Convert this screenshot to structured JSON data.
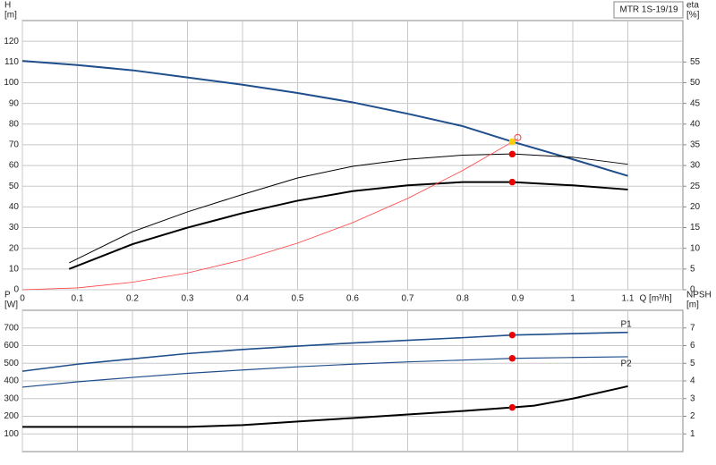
{
  "chart_data": [
    {
      "type": "line",
      "label": "MTR 1S-19/19",
      "y_label": "H",
      "y_unit": "[m]",
      "y2_label": "eta",
      "y2_unit": "[%]",
      "x_label": "Q [m³/h]",
      "xlim": [
        0,
        1.2
      ],
      "xticks": [
        0,
        0.1,
        0.2,
        0.3,
        0.4,
        0.5,
        0.6,
        0.7,
        0.8,
        0.9,
        1.0,
        1.1
      ],
      "xtick_labels": true,
      "ylim": [
        0,
        130
      ],
      "yticks": [
        0,
        10,
        20,
        30,
        40,
        50,
        60,
        70,
        80,
        90,
        100,
        110,
        120
      ],
      "y2lim": [
        0,
        65
      ],
      "y2ticks": [
        0,
        5,
        10,
        15,
        20,
        25,
        30,
        35,
        40,
        45,
        50,
        55
      ],
      "grid": true,
      "series": [
        {
          "color": "#1f4e8c",
          "width": 2,
          "x": [
            0,
            0.1,
            0.2,
            0.3,
            0.4,
            0.5,
            0.6,
            0.7,
            0.8,
            0.89,
            1.0,
            1.1
          ],
          "values": [
            110.5,
            108.5,
            106,
            102.5,
            99,
            95,
            90.5,
            85,
            79,
            71.5,
            63,
            55
          ]
        },
        {
          "color": "#000000",
          "width": 1,
          "axis": "y2",
          "x": [
            0.085,
            0.2,
            0.3,
            0.4,
            0.5,
            0.6,
            0.7,
            0.8,
            0.89,
            1.0,
            1.1
          ],
          "values": [
            6.5,
            14,
            18.8,
            23,
            27,
            29.8,
            31.5,
            32.5,
            32.8,
            32,
            30.3
          ]
        },
        {
          "color": "#000000",
          "width": 2,
          "axis": "y2",
          "x": [
            0.085,
            0.2,
            0.3,
            0.4,
            0.5,
            0.6,
            0.7,
            0.8,
            0.89,
            1.0,
            1.1
          ],
          "values": [
            5,
            11,
            15,
            18.5,
            21.5,
            23.8,
            25.2,
            26,
            26,
            25.2,
            24.2
          ]
        },
        {
          "color": "#ff4040",
          "width": 0.8,
          "x": [
            0,
            0.1,
            0.2,
            0.3,
            0.4,
            0.5,
            0.6,
            0.7,
            0.8,
            0.9
          ],
          "values": [
            0,
            0.9,
            3.6,
            8.1,
            14.4,
            22.5,
            32.4,
            44.1,
            57.6,
            72.9
          ]
        }
      ],
      "points": [
        {
          "x": 0.9,
          "y": 73.5,
          "color": "#ff4040",
          "open": true
        },
        {
          "x": 0.89,
          "y": 71.5,
          "color": "#ffcc00"
        },
        {
          "x": 0.89,
          "y": 65.5,
          "color": "#ee0000"
        },
        {
          "x": 0.89,
          "y": 52,
          "color": "#ee0000"
        }
      ]
    },
    {
      "type": "line",
      "y_label": "P",
      "y_unit": "[W]",
      "y2_label": "NPSH",
      "y2_unit": "[m]",
      "xlim": [
        0,
        1.2
      ],
      "xticks": [
        0,
        0.1,
        0.2,
        0.3,
        0.4,
        0.5,
        0.6,
        0.7,
        0.8,
        0.9,
        1.0,
        1.1
      ],
      "xtick_labels": false,
      "ylim": [
        0,
        800
      ],
      "yticks": [
        100,
        200,
        300,
        400,
        500,
        600,
        700
      ],
      "y2lim": [
        0,
        8
      ],
      "y2ticks": [
        1,
        2,
        3,
        4,
        5,
        6,
        7
      ],
      "grid": true,
      "series": [
        {
          "name": "P1",
          "color": "#1f4e8c",
          "width": 1.6,
          "x": [
            0,
            0.1,
            0.2,
            0.3,
            0.4,
            0.5,
            0.6,
            0.7,
            0.8,
            0.89,
            1.0,
            1.1
          ],
          "values": [
            455,
            495,
            525,
            555,
            578,
            597,
            615,
            630,
            645,
            660,
            668,
            675
          ]
        },
        {
          "name": "P2",
          "color": "#1f4e8c",
          "width": 1.2,
          "x": [
            0,
            0.1,
            0.2,
            0.3,
            0.4,
            0.5,
            0.6,
            0.7,
            0.8,
            0.89,
            1.0,
            1.1
          ],
          "values": [
            365,
            395,
            420,
            443,
            462,
            480,
            495,
            508,
            518,
            528,
            533,
            537
          ]
        },
        {
          "color": "#000000",
          "width": 2,
          "axis": "y2",
          "x": [
            0,
            0.3,
            0.4,
            0.5,
            0.6,
            0.7,
            0.8,
            0.89,
            0.93,
            1.0,
            1.1
          ],
          "values": [
            1.4,
            1.4,
            1.5,
            1.7,
            1.9,
            2.1,
            2.3,
            2.5,
            2.6,
            3.0,
            3.7
          ]
        }
      ],
      "points": [
        {
          "x": 0.89,
          "y": 660,
          "color": "#ee0000"
        },
        {
          "x": 0.89,
          "y": 528,
          "color": "#ee0000"
        },
        {
          "x": 0.89,
          "y": 2.5,
          "color": "#ee0000",
          "axis": "y2"
        }
      ]
    }
  ]
}
